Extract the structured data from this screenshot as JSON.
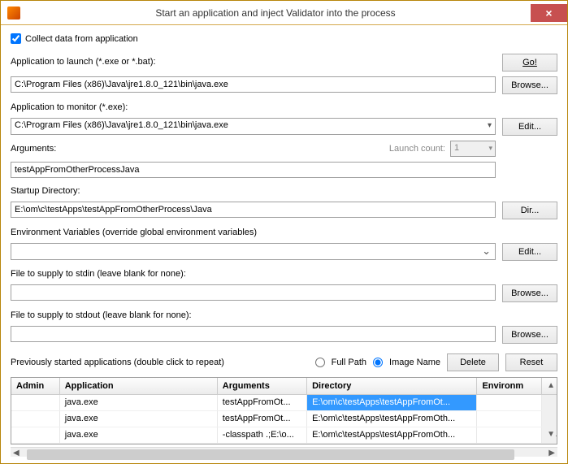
{
  "window": {
    "title": "Start an application and inject Validator into the process"
  },
  "checkbox": {
    "label": "Collect data from application",
    "checked": true
  },
  "app_launch": {
    "label": "Application to launch (*.exe or *.bat):",
    "value": "C:\\Program Files (x86)\\Java\\jre1.8.0_121\\bin\\java.exe"
  },
  "app_monitor": {
    "label": "Application to monitor (*.exe):",
    "value": "C:\\Program Files (x86)\\Java\\jre1.8.0_121\\bin\\java.exe"
  },
  "arguments": {
    "label": "Arguments:",
    "value": "testAppFromOtherProcessJava",
    "launch_count_label": "Launch count:",
    "launch_count_value": "1"
  },
  "startup_dir": {
    "label": "Startup Directory:",
    "value": "E:\\om\\c\\testApps\\testAppFromOtherProcess\\Java"
  },
  "env_vars": {
    "label": "Environment Variables (override global environment variables)"
  },
  "stdin": {
    "label": "File to supply to stdin (leave blank for none):",
    "value": ""
  },
  "stdout": {
    "label": "File to supply to stdout (leave blank for none):",
    "value": ""
  },
  "prev": {
    "label": "Previously started applications (double click to repeat)",
    "radio1": "Full Path",
    "radio2": "Image Name"
  },
  "buttons": {
    "go": "Go!",
    "browse": "Browse...",
    "edit": "Edit...",
    "dir": "Dir...",
    "delete": "Delete",
    "reset": "Reset"
  },
  "table": {
    "headers": [
      "Admin",
      "Application",
      "Arguments",
      "Directory",
      "Environm"
    ],
    "rows": [
      [
        "",
        "java.exe",
        "testAppFromOt...",
        "E:\\om\\c\\testApps\\testAppFromOt...",
        ""
      ],
      [
        "",
        "java.exe",
        "testAppFromOt...",
        "E:\\om\\c\\testApps\\testAppFromOth...",
        ""
      ],
      [
        "",
        "java.exe",
        "-classpath .;E:\\o...",
        "E:\\om\\c\\testApps\\testAppFromOth...",
        ""
      ]
    ],
    "selected_row": 0,
    "selected_col": 3,
    "col_widths": {
      "admin": 58,
      "app": 190,
      "args": 108,
      "dir": 205,
      "env": 78
    },
    "header_bg": "#ececec",
    "selected_bg": "#3399ff",
    "selected_fg": "#ffffff"
  },
  "colors": {
    "border": "#a0a0a0",
    "titlebar_close": "#c75050",
    "window_border": "#b8860b"
  }
}
